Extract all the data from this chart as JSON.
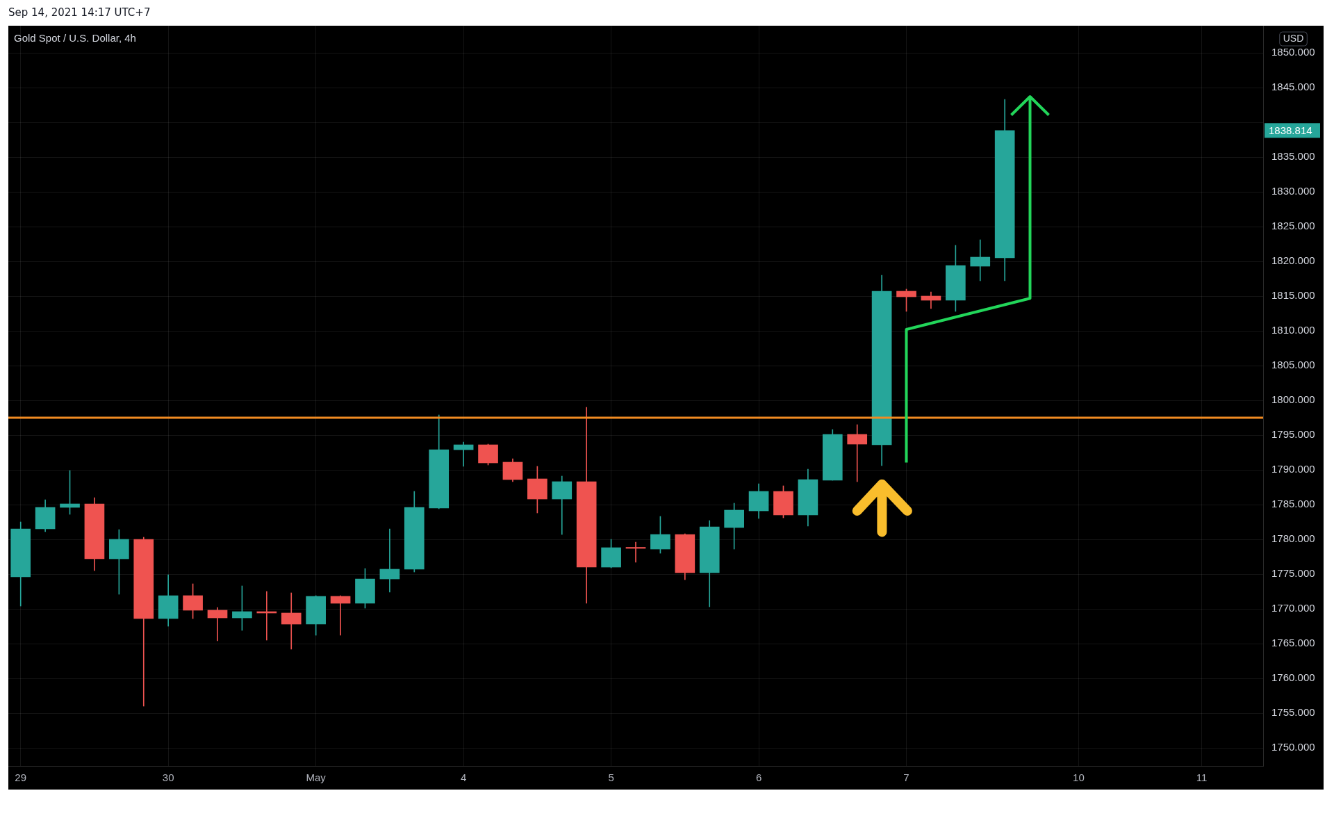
{
  "chart_data": {
    "type": "candlestick",
    "title": "Gold Spot / U.S. Dollar, 4h",
    "ylabel": "USD",
    "annotations": [
      "Sep 14, 2021 14:17 UTC+7",
      "1838.814"
    ],
    "categories": [
      "29",
      null,
      null,
      null,
      null,
      null,
      "30",
      null,
      null,
      null,
      null,
      null,
      "May",
      null,
      null,
      null,
      null,
      null,
      "4",
      null,
      null,
      null,
      null,
      null,
      "5",
      null,
      null,
      null,
      null,
      null,
      "6",
      null,
      null,
      null,
      null,
      null,
      "7",
      null,
      null,
      null,
      null,
      null,
      null,
      "10",
      null,
      null,
      null,
      null,
      "11",
      null,
      null
    ],
    "ohlc": [
      [
        1774.6,
        1782.5,
        1770.4,
        1781.5
      ],
      [
        1781.5,
        1785.7,
        1781.1,
        1784.6
      ],
      [
        1784.6,
        1789.9,
        1783.6,
        1785.1
      ],
      [
        1785.1,
        1786.0,
        1775.5,
        1777.2
      ],
      [
        1777.2,
        1781.4,
        1772.1,
        1780.0
      ],
      [
        1780.0,
        1780.3,
        1756.0,
        1768.6
      ],
      [
        1768.6,
        1774.9,
        1767.5,
        1771.9
      ],
      [
        1771.9,
        1773.6,
        1768.6,
        1769.8
      ],
      [
        1769.8,
        1770.2,
        1765.4,
        1768.7
      ],
      [
        1768.7,
        1773.3,
        1766.9,
        1769.6
      ],
      [
        1769.6,
        1772.5,
        1765.5,
        1769.4
      ],
      [
        1769.4,
        1772.3,
        1764.2,
        1767.8
      ],
      [
        1767.8,
        1771.9,
        1766.2,
        1771.8
      ],
      [
        1771.8,
        1771.9,
        1766.2,
        1770.8
      ],
      [
        1770.8,
        1775.8,
        1770.1,
        1774.3
      ],
      [
        1774.3,
        1781.5,
        1772.4,
        1775.7
      ],
      [
        1775.7,
        1786.9,
        1775.3,
        1784.6
      ],
      [
        1784.5,
        1797.9,
        1784.4,
        1792.9
      ],
      [
        1792.9,
        1794.0,
        1790.5,
        1793.6
      ],
      [
        1793.6,
        1793.7,
        1790.7,
        1791.0
      ],
      [
        1791.1,
        1791.6,
        1788.3,
        1788.6
      ],
      [
        1788.7,
        1790.5,
        1783.8,
        1785.8
      ],
      [
        1785.8,
        1789.1,
        1780.7,
        1788.3
      ],
      [
        1788.3,
        1799.0,
        1770.8,
        1776.0
      ],
      [
        1776.0,
        1780.0,
        1775.9,
        1778.8
      ],
      [
        1778.8,
        1779.6,
        1776.7,
        1778.7
      ],
      [
        1778.6,
        1783.3,
        1778.0,
        1780.7
      ],
      [
        1780.7,
        1780.8,
        1774.2,
        1775.2
      ],
      [
        1775.2,
        1782.7,
        1770.3,
        1781.8
      ],
      [
        1781.7,
        1785.2,
        1778.6,
        1784.2
      ],
      [
        1784.1,
        1788.0,
        1783.0,
        1786.9
      ],
      [
        1786.9,
        1787.7,
        1783.1,
        1783.5
      ],
      [
        1783.5,
        1790.1,
        1781.9,
        1788.6
      ],
      [
        1788.5,
        1795.8,
        1788.5,
        1795.1
      ],
      [
        1795.1,
        1796.5,
        1788.3,
        1793.7
      ],
      [
        1793.6,
        1818.0,
        1790.6,
        1815.7
      ],
      [
        1815.7,
        1816.0,
        1812.8,
        1814.9
      ],
      [
        1815.0,
        1815.6,
        1813.2,
        1814.4
      ],
      [
        1814.4,
        1822.3,
        1812.8,
        1819.4
      ],
      [
        1819.3,
        1823.1,
        1817.2,
        1820.6
      ],
      [
        1820.5,
        1843.3,
        1817.2,
        1838.814
      ],
      null,
      null,
      null,
      null,
      null,
      null,
      null,
      null,
      null,
      null
    ],
    "colors": [
      "#26a69a",
      "#26a69a",
      "#26a69a",
      "#ef5350",
      "#26a69a",
      "#ef5350",
      "#26a69a",
      "#ef5350",
      "#ef5350",
      "#26a69a",
      "#ef5350",
      "#ef5350",
      "#26a69a",
      "#ef5350",
      "#26a69a",
      "#26a69a",
      "#26a69a",
      "#26a69a",
      "#26a69a",
      "#ef5350",
      "#ef5350",
      "#ef5350",
      "#26a69a",
      "#ef5350",
      "#26a69a",
      "#ef5350",
      "#26a69a",
      "#ef5350",
      "#26a69a",
      "#26a69a",
      "#26a69a",
      "#ef5350",
      "#26a69a",
      "#26a69a",
      "#ef5350",
      "#26a69a",
      "#ef5350",
      "#ef5350",
      "#26a69a",
      "#26a69a",
      "#26a69a",
      null,
      null,
      null,
      null,
      null,
      null,
      null,
      null,
      null,
      null
    ],
    "ylim": [
      1747.4,
      1853.9
    ],
    "yticks": [
      {
        "value": 1750,
        "label": "1750.000"
      },
      {
        "value": 1755,
        "label": "1755.000"
      },
      {
        "value": 1760,
        "label": "1760.000"
      },
      {
        "value": 1765,
        "label": "1765.000"
      },
      {
        "value": 1770,
        "label": "1770.000"
      },
      {
        "value": 1775,
        "label": "1775.000"
      },
      {
        "value": 1780,
        "label": "1780.000"
      },
      {
        "value": 1785,
        "label": "1785.000"
      },
      {
        "value": 1790,
        "label": "1790.000"
      },
      {
        "value": 1795,
        "label": "1795.000"
      },
      {
        "value": 1800,
        "label": "1800.000"
      },
      {
        "value": 1805,
        "label": "1805.000"
      },
      {
        "value": 1810,
        "label": "1810.000"
      },
      {
        "value": 1815,
        "label": "1815.000"
      },
      {
        "value": 1820,
        "label": "1820.000"
      },
      {
        "value": 1825,
        "label": "1825.000"
      },
      {
        "value": 1830,
        "label": "1830.000"
      },
      {
        "value": 1835,
        "label": "1835.000"
      },
      {
        "value": 1840,
        "label": null
      },
      {
        "value": 1845,
        "label": "1845.000"
      },
      {
        "value": 1850,
        "label": "1850.000"
      }
    ],
    "grid": true,
    "ref_lines": [
      {
        "axis": "y",
        "value": 1797.5,
        "color": "#f28b22"
      }
    ]
  }
}
